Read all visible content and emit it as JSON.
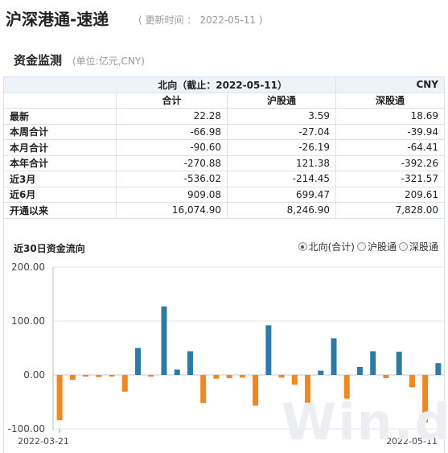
{
  "header": {
    "title": "沪深港通-速递",
    "update_label": "( 更新时间 ：",
    "update_date": "2022-05-11 )"
  },
  "section": {
    "title": "资金监测",
    "unit": "(单位:亿元,CNY)"
  },
  "table": {
    "top_header": "北向（截止：2022-05-11）",
    "currency": "CNY",
    "columns": [
      "合计",
      "沪股通",
      "深股通"
    ],
    "rows": [
      {
        "label": "最新",
        "values": [
          "22.28",
          "3.59",
          "18.69"
        ]
      },
      {
        "label": "本周合计",
        "values": [
          "-66.98",
          "-27.04",
          "-39.94"
        ]
      },
      {
        "label": "本月合计",
        "values": [
          "-90.60",
          "-26.19",
          "-64.41"
        ]
      },
      {
        "label": "本年合计",
        "values": [
          "-270.88",
          "121.38",
          "-392.26"
        ]
      },
      {
        "label": "近3月",
        "values": [
          "-536.02",
          "-214.45",
          "-321.57"
        ]
      },
      {
        "label": "近6月",
        "values": [
          "909.08",
          "699.47",
          "209.61"
        ]
      },
      {
        "label": "开通以来",
        "values": [
          "16,074.90",
          "8,246.90",
          "7,828.00"
        ]
      }
    ]
  },
  "chart_section": {
    "title": "近30日资金流向",
    "options": [
      {
        "label": "北向(合计)",
        "checked": true
      },
      {
        "label": "沪股通",
        "checked": false
      },
      {
        "label": "深股通",
        "checked": false
      }
    ],
    "watermark": "Win.d"
  },
  "chart_data": {
    "type": "bar",
    "title": "近30日资金流向",
    "x_start": "2022-03-21",
    "x_end": "2022-05-11",
    "y_ticks": [
      "200.00",
      "100.00",
      "0.00",
      "-100.00"
    ],
    "ylim": [
      -100,
      200
    ],
    "values": [
      -84,
      -9,
      -3,
      -4,
      -3,
      -31,
      50,
      -3,
      127,
      10,
      44,
      -52,
      -7,
      -6,
      -5,
      -57,
      92,
      -5,
      -18,
      -52,
      8,
      68,
      -44,
      15,
      44,
      -6,
      43,
      -23,
      -88,
      22
    ],
    "colors": {
      "positive": "#2e7aa7",
      "negative": "#f0871f"
    }
  }
}
